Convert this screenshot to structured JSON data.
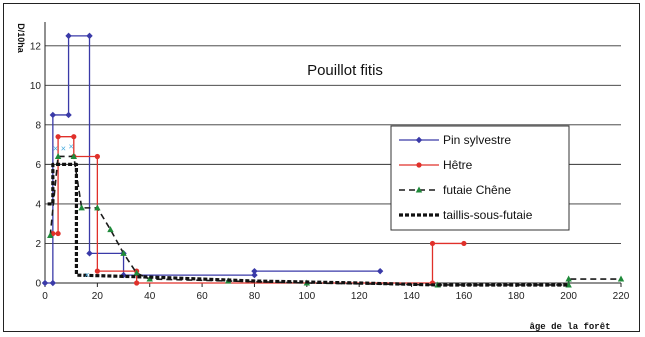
{
  "chart_data": {
    "type": "line",
    "title": "Pouillot fitis",
    "ylabel": "D/10ha",
    "xlabel": "âge de la forêt",
    "xlim": [
      0,
      220
    ],
    "ylim": [
      0,
      13
    ],
    "x_ticks": [
      0,
      20,
      40,
      60,
      80,
      100,
      120,
      140,
      160,
      180,
      200,
      220
    ],
    "y_ticks": [
      0,
      2,
      4,
      6,
      8,
      10,
      12
    ],
    "grid": "horizontal",
    "legend_position": "right",
    "series": [
      {
        "name": "Pin sylvestre",
        "color": "#3a3aa8",
        "style": "solid",
        "marker": "diamond",
        "points": [
          [
            0,
            0
          ],
          [
            3,
            0
          ],
          [
            3,
            8.5
          ],
          [
            9,
            8.5
          ],
          [
            9,
            12.5
          ],
          [
            17,
            12.5
          ],
          [
            17,
            1.5
          ],
          [
            30,
            1.5
          ],
          [
            30,
            0.4
          ],
          [
            80,
            0.4
          ],
          [
            80,
            0.6
          ],
          [
            128,
            0.6
          ]
        ]
      },
      {
        "name": "Hêtre",
        "color": "#e0302a",
        "style": "solid",
        "marker": "circle",
        "points": [
          [
            3,
            2.5
          ],
          [
            5,
            2.5
          ],
          [
            5,
            7.4
          ],
          [
            11,
            7.4
          ],
          [
            11,
            6.4
          ],
          [
            20,
            6.4
          ],
          [
            20,
            0.6
          ],
          [
            35,
            0.6
          ],
          [
            35,
            0
          ],
          [
            148,
            0
          ],
          [
            148,
            2
          ],
          [
            160,
            2
          ]
        ]
      },
      {
        "name": "futaie Chêne",
        "color": "#1a1a1a",
        "style": "dashed",
        "marker": "triangle",
        "points": [
          [
            2,
            2.4
          ],
          [
            5,
            6.4
          ],
          [
            11,
            6.4
          ],
          [
            14,
            3.8
          ],
          [
            20,
            3.8
          ],
          [
            25,
            2.7
          ],
          [
            30,
            1.5
          ],
          [
            35,
            0.5
          ],
          [
            40,
            0.2
          ],
          [
            70,
            0.1
          ],
          [
            100,
            0
          ],
          [
            150,
            -0.1
          ],
          [
            200,
            -0.1
          ],
          [
            200,
            0.2
          ],
          [
            220,
            0.2
          ]
        ]
      },
      {
        "name": "taillis-sous-futaie",
        "color": "#111111",
        "style": "heavy-dash",
        "marker": "none",
        "points": [
          [
            1,
            4
          ],
          [
            3,
            4
          ],
          [
            3,
            6
          ],
          [
            12,
            6
          ],
          [
            12,
            0.4
          ],
          [
            40,
            0.3
          ],
          [
            60,
            0.2
          ],
          [
            80,
            0.1
          ],
          [
            120,
            0.0
          ],
          [
            150,
            -0.1
          ],
          [
            200,
            -0.1
          ]
        ]
      }
    ],
    "extra_markers": [
      {
        "color": "#44aadd",
        "points": [
          [
            4,
            6.8
          ],
          [
            7,
            6.8
          ],
          [
            10,
            6.9
          ],
          [
            16,
            0.4
          ]
        ]
      }
    ]
  }
}
